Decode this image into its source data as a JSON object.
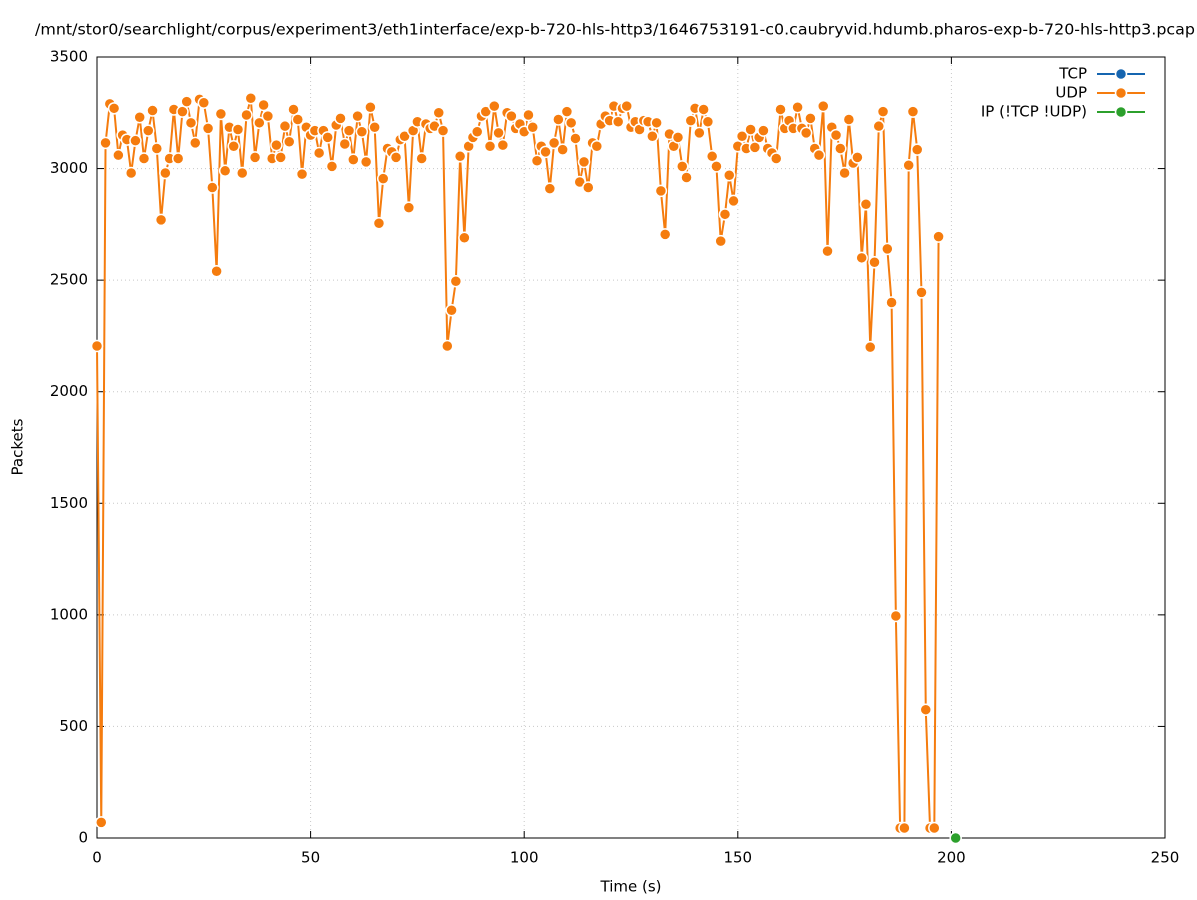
{
  "chart_data": {
    "type": "line",
    "title": "/mnt/stor0/searchlight/corpus/experiment3/eth1interface/exp-b-720-hls-http3/1646753191-c0.caubryvid.hdumb.pharos-exp-b-720-hls-http3.pcap",
    "xlabel": "Time (s)",
    "ylabel": "Packets",
    "xlim": [
      0,
      250
    ],
    "xticks": [
      0,
      50,
      100,
      150,
      200,
      250
    ],
    "ylim": [
      0,
      3500
    ],
    "yticks": [
      0,
      500,
      1000,
      1500,
      2000,
      2500,
      3000,
      3500
    ],
    "grid": true,
    "legend": "top-right",
    "series": [
      {
        "name": "TCP",
        "color": "#1565b0",
        "x": [],
        "values": []
      },
      {
        "name": "UDP",
        "color": "#f57c0e",
        "x": [
          0,
          1,
          2,
          3,
          4,
          5,
          6,
          7,
          8,
          9,
          10,
          11,
          12,
          13,
          14,
          15,
          16,
          17,
          18,
          19,
          20,
          21,
          22,
          23,
          24,
          25,
          26,
          27,
          28,
          29,
          30,
          31,
          32,
          33,
          34,
          35,
          36,
          37,
          38,
          39,
          40,
          41,
          42,
          43,
          44,
          45,
          46,
          47,
          48,
          49,
          50,
          51,
          52,
          53,
          54,
          55,
          56,
          57,
          58,
          59,
          60,
          61,
          62,
          63,
          64,
          65,
          66,
          67,
          68,
          69,
          70,
          71,
          72,
          73,
          74,
          75,
          76,
          77,
          78,
          79,
          80,
          81,
          82,
          83,
          84,
          85,
          86,
          87,
          88,
          89,
          90,
          91,
          92,
          93,
          94,
          95,
          96,
          97,
          98,
          99,
          100,
          101,
          102,
          103,
          104,
          105,
          106,
          107,
          108,
          109,
          110,
          111,
          112,
          113,
          114,
          115,
          116,
          117,
          118,
          119,
          120,
          121,
          122,
          123,
          124,
          125,
          126,
          127,
          128,
          129,
          130,
          131,
          132,
          133,
          134,
          135,
          136,
          137,
          138,
          139,
          140,
          141,
          142,
          143,
          144,
          145,
          146,
          147,
          148,
          149,
          150,
          151,
          152,
          153,
          154,
          155,
          156,
          157,
          158,
          159,
          160,
          161,
          162,
          163,
          164,
          165,
          166,
          167,
          168,
          169,
          170,
          171,
          172,
          173,
          174,
          175,
          176,
          177,
          178,
          179,
          180,
          181,
          182,
          183,
          184,
          185,
          186,
          187,
          188,
          189,
          190,
          191,
          192,
          193,
          194,
          195,
          196,
          197
        ],
        "values": [
          2205,
          70,
          3115,
          3290,
          3270,
          3060,
          3150,
          3130,
          2980,
          3125,
          3230,
          3045,
          3170,
          3260,
          3090,
          2770,
          2980,
          3045,
          3265,
          3045,
          3255,
          3300,
          3205,
          3115,
          3310,
          3295,
          3180,
          2915,
          2540,
          3245,
          2990,
          3185,
          3100,
          3175,
          2980,
          3240,
          3315,
          3050,
          3205,
          3285,
          3235,
          3045,
          3105,
          3050,
          3190,
          3120,
          3265,
          3220,
          2975,
          3185,
          3150,
          3170,
          3070,
          3170,
          3140,
          3010,
          3195,
          3225,
          3110,
          3170,
          3040,
          3235,
          3165,
          3030,
          3275,
          3185,
          2755,
          2955,
          3090,
          3075,
          3050,
          3130,
          3145,
          2825,
          3170,
          3210,
          3045,
          3200,
          3180,
          3190,
          3250,
          3170,
          2205,
          2365,
          2495,
          3055,
          2690,
          3100,
          3140,
          3165,
          3235,
          3255,
          3100,
          3280,
          3160,
          3105,
          3250,
          3235,
          3180,
          3200,
          3165,
          3240,
          3185,
          3035,
          3100,
          3075,
          2910,
          3115,
          3220,
          3085,
          3255,
          3205,
          3135,
          2940,
          3030,
          2915,
          3115,
          3100,
          3200,
          3235,
          3215,
          3280,
          3210,
          3270,
          3280,
          3185,
          3210,
          3175,
          3215,
          3210,
          3145,
          3205,
          2900,
          2705,
          3155,
          3100,
          3140,
          3010,
          2960,
          3215,
          3270,
          3160,
          3265,
          3210,
          3055,
          3010,
          2675,
          2795,
          2970,
          2855,
          3100,
          3145,
          3090,
          3175,
          3095,
          3140,
          3170,
          3090,
          3070,
          3045,
          3265,
          3180,
          3215,
          3180,
          3275,
          3180,
          3160,
          3225,
          3090,
          3060,
          3280,
          2630,
          3185,
          3150,
          3090,
          2980,
          3220,
          3025,
          3050,
          2600,
          2840,
          2200,
          2580,
          3190,
          3255,
          2640,
          2400,
          995,
          45,
          45,
          3015,
          3255,
          3085,
          2445,
          575,
          45,
          45,
          2695
        ]
      },
      {
        "name": "IP (!TCP  !UDP)",
        "color": "#2ca02c",
        "x": [
          201
        ],
        "values": [
          0
        ]
      }
    ]
  }
}
